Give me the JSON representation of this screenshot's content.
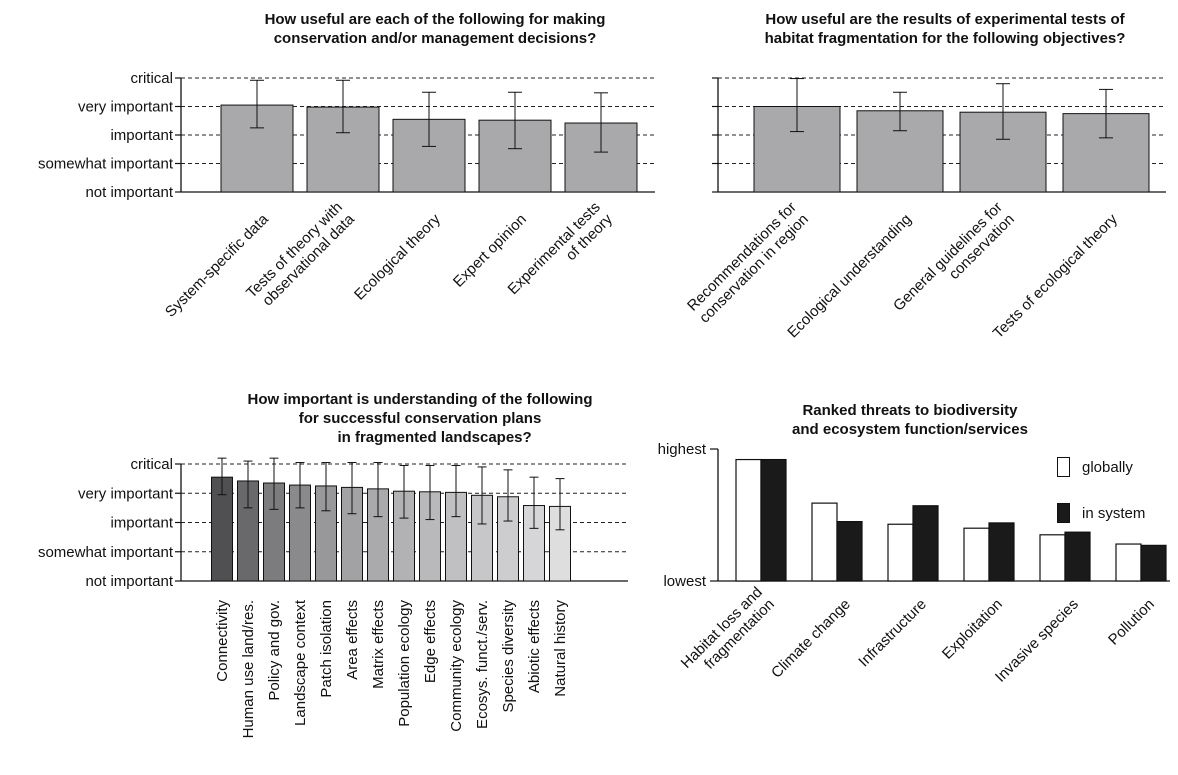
{
  "chart_data": [
    {
      "type": "bar",
      "title": "How useful are each of the following for making\nconservation and/or management decisions?",
      "y_levels": [
        "not important",
        "somewhat important",
        "important",
        "very important",
        "critical"
      ],
      "ylim": [
        0,
        4
      ],
      "grid": "dashed horizontal",
      "categories": [
        "System-specific  data",
        "Tests of theory with\nobservational data",
        "Ecological theory",
        "Expert opinion",
        "Experimental tests\nof theory"
      ],
      "values": [
        3.05,
        2.98,
        2.55,
        2.52,
        2.42
      ],
      "err_low": [
        2.25,
        2.08,
        1.6,
        1.52,
        1.4
      ],
      "err_high": [
        3.92,
        3.92,
        3.5,
        3.5,
        3.48
      ],
      "bar_colors": [
        "#a9a9ab",
        "#a9a9ab",
        "#a9a9ab",
        "#a9a9ab",
        "#a9a9ab"
      ]
    },
    {
      "type": "bar",
      "title": "How useful are the results of experimental tests of\nhabitat fragmentation for the following objectives?",
      "y_levels": [],
      "ylim": [
        0,
        4
      ],
      "grid": "dashed horizontal",
      "categories": [
        "Recommendations for\nconservation in region",
        "Ecological understanding",
        "General guidelines for\nconservation",
        "Tests of ecological theory"
      ],
      "values": [
        3.0,
        2.85,
        2.8,
        2.75
      ],
      "err_low": [
        2.12,
        2.15,
        1.85,
        1.9
      ],
      "err_high": [
        3.98,
        3.5,
        3.8,
        3.6
      ],
      "bar_colors": [
        "#a9a9ab",
        "#a9a9ab",
        "#a9a9ab",
        "#a9a9ab"
      ]
    },
    {
      "type": "bar",
      "title": "How important is understanding of the following\nfor successful conservation plans\n       in fragmented landscapes?",
      "y_levels": [
        "not important",
        "somewhat important",
        "important",
        "very important",
        "critical"
      ],
      "ylim": [
        0,
        4
      ],
      "grid": "dashed horizontal",
      "categories": [
        "Connectivity",
        "Human use land/res.",
        "Policy and gov.",
        "Landscape context",
        "Patch isolation",
        "Area effects",
        "Matrix effects",
        "Population ecology",
        "Edge effects",
        "Community ecology",
        "Ecosys. funct./serv.",
        "Species diversity",
        "Abiotic effects",
        "Natural history"
      ],
      "values": [
        3.55,
        3.42,
        3.35,
        3.28,
        3.25,
        3.2,
        3.15,
        3.07,
        3.05,
        3.03,
        2.93,
        2.88,
        2.58,
        2.55
      ],
      "err_low": [
        2.95,
        2.5,
        2.45,
        2.5,
        2.4,
        2.3,
        2.2,
        2.15,
        2.1,
        2.2,
        1.95,
        2.05,
        1.8,
        1.75
      ],
      "err_high": [
        4.2,
        4.1,
        4.2,
        4.05,
        4.05,
        4.05,
        4.05,
        3.95,
        3.95,
        3.95,
        3.9,
        3.8,
        3.55,
        3.5
      ],
      "bar_colors": [
        "#505052",
        "#69696b",
        "#7c7c7e",
        "#8a8a8c",
        "#98989a",
        "#a2a2a4",
        "#aaaaac",
        "#b2b2b4",
        "#b9b9bb",
        "#c0c0c2",
        "#c7c7c9",
        "#cdcdcf",
        "#d6d6d8",
        "#dededf"
      ]
    },
    {
      "type": "bar",
      "title": "Ranked threats to biodiversity\nand ecosystem function/services",
      "y_levels": [
        "lowest",
        "highest"
      ],
      "ylim": [
        0,
        1
      ],
      "grid": "none",
      "legend": "top-right",
      "categories": [
        "Habitat loss and\nfragmentation",
        "Climate change",
        "Infrastructure",
        "Exploitation",
        "Invasive species",
        "Pollution"
      ],
      "series": [
        {
          "name": "globally",
          "values": [
            0.92,
            0.59,
            0.43,
            0.4,
            0.35,
            0.28
          ],
          "color": "#ffffff"
        },
        {
          "name": "in system",
          "values": [
            0.92,
            0.45,
            0.57,
            0.44,
            0.37,
            0.27
          ],
          "color": "#1a1a1a"
        }
      ]
    }
  ]
}
